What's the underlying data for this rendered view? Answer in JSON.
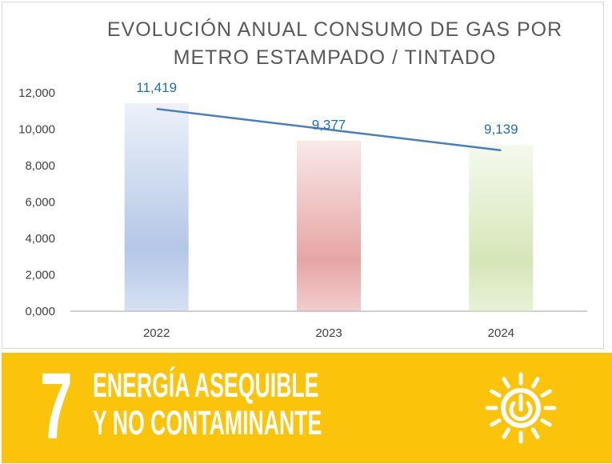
{
  "chart_data": {
    "type": "bar",
    "title_lines": [
      "EVOLUCIÓN  ANUAL CONSUMO  DE GAS POR",
      "METRO ESTAMPADO / TINTADO"
    ],
    "categories": [
      "2022",
      "2023",
      "2024"
    ],
    "values": [
      11.419,
      9.377,
      9.139
    ],
    "data_labels": [
      "11,419",
      "9,377",
      "9,139"
    ],
    "y_ticks": [
      "0,000",
      "2,000",
      "4,000",
      "6,000",
      "8,000",
      "10,000",
      "12,000"
    ],
    "ylim": [
      0,
      12
    ],
    "trendline": "linear",
    "bar_colors": [
      "#b4c7e7",
      "#e6a5a5",
      "#d6e6b8"
    ],
    "trendline_color": "#4a7ebb",
    "label_color": "#1f6fb2",
    "grid": false,
    "xlabel": "",
    "ylabel": ""
  },
  "sdg_banner": {
    "number": "7",
    "line1": "ENERGÍA ASEQUIBLE",
    "line2": "Y NO CONTAMINANTE",
    "icon": "sun-power-icon",
    "color": "#fcc30b"
  }
}
